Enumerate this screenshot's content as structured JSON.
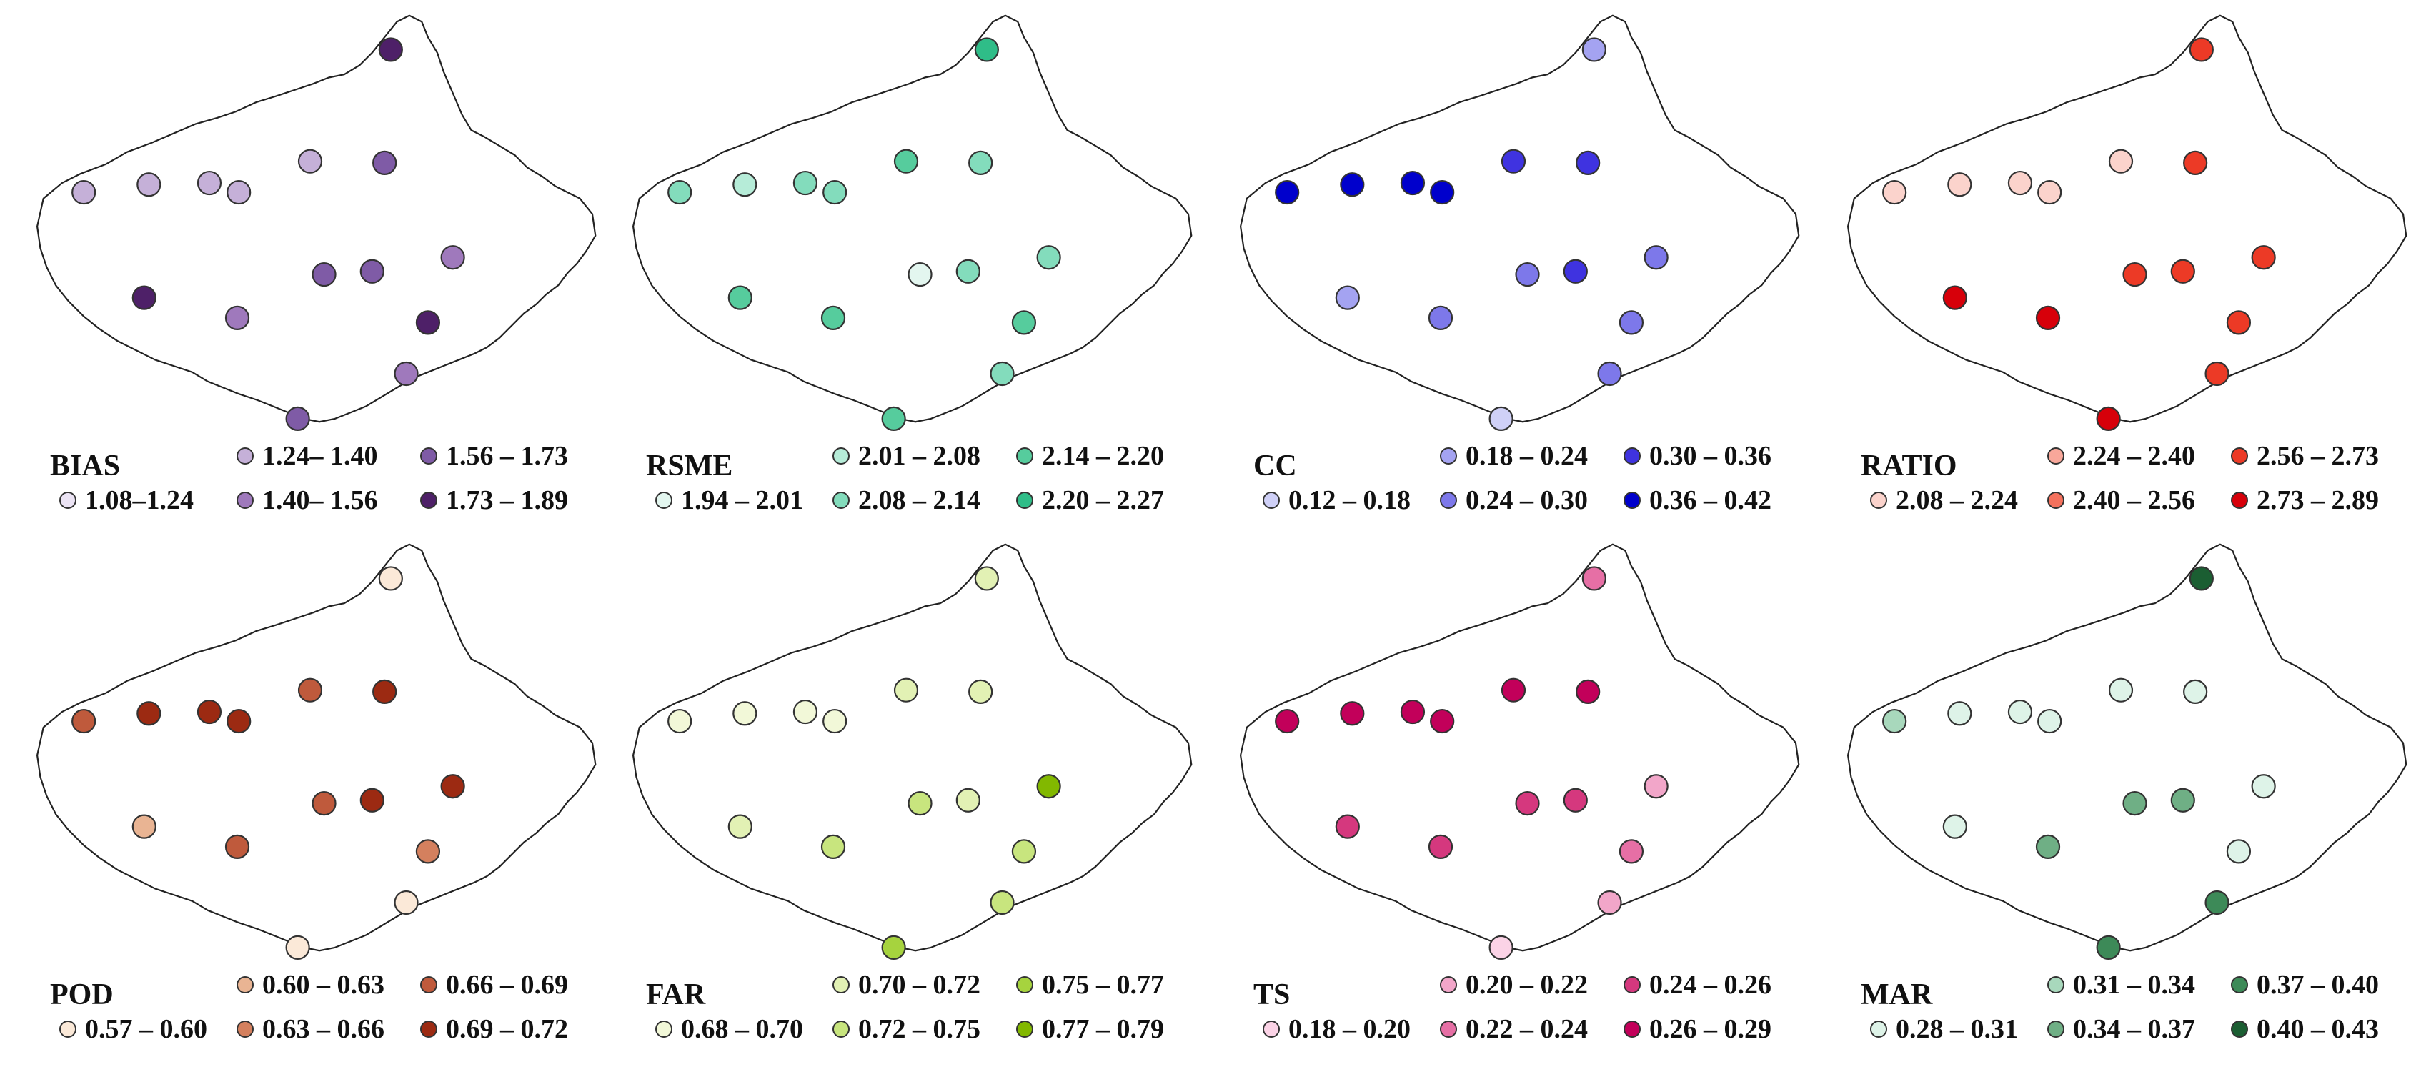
{
  "panels": [
    {
      "label": "BIAS",
      "colors": [
        "#ece4f5",
        "#c5b0d8",
        "#9f79bc",
        "#7f5ba6",
        "#4e2068"
      ],
      "legend_bins": [
        "1.08–1.24",
        "1.24– 1.40",
        "1.40– 1.56",
        "1.56 – 1.73",
        "1.73 – 1.89"
      ],
      "station_class": [
        4,
        1,
        1,
        1,
        1,
        1,
        3,
        2,
        4,
        2,
        3,
        3,
        4,
        2,
        3,
        4
      ]
    },
    {
      "label": "RSME",
      "colors": [
        "#e3f6ef",
        "#b6ecd8",
        "#83dcbc",
        "#56cc9d",
        "#2fbd88"
      ],
      "legend_bins": [
        "1.94 – 2.01",
        "2.01 – 2.08",
        "2.08 – 2.14",
        "2.14 – 2.20",
        "2.20 – 2.27"
      ],
      "station_class": [
        4,
        2,
        1,
        2,
        2,
        3,
        2,
        2,
        3,
        3,
        0,
        2,
        3,
        2,
        3,
        4
      ]
    },
    {
      "label": "CC",
      "colors": [
        "#cfd0f7",
        "#a4a3f1",
        "#7d78ea",
        "#3f33e0",
        "#0000cc"
      ],
      "legend_bins": [
        "0.12 – 0.18",
        "0.18 – 0.24",
        "0.24 – 0.30",
        "0.30 – 0.36",
        "0.36 – 0.42"
      ],
      "station_class": [
        1,
        4,
        4,
        4,
        4,
        3,
        3,
        2,
        1,
        2,
        2,
        3,
        2,
        2,
        0,
        0
      ]
    },
    {
      "label": "RATIO",
      "colors": [
        "#fbd3cc",
        "#f8a79a",
        "#f4715d",
        "#ec3a26",
        "#d7000a"
      ],
      "legend_bins": [
        "2.08 – 2.24",
        "2.24 – 2.40",
        "2.40 – 2.56",
        "2.56 – 2.73",
        "2.73 – 2.89"
      ],
      "station_class": [
        3,
        0,
        0,
        0,
        0,
        0,
        3,
        3,
        4,
        4,
        3,
        3,
        3,
        3,
        4,
        4
      ]
    },
    {
      "label": "POD",
      "colors": [
        "#fbe9d8",
        "#e9b493",
        "#d4805e",
        "#bf5a3c",
        "#9c2a12"
      ],
      "legend_bins": [
        "0.57 – 0.60",
        "0.60 – 0.63",
        "0.63 – 0.66",
        "0.66 – 0.69",
        "0.69 – 0.72"
      ],
      "station_class": [
        0,
        3,
        4,
        4,
        4,
        3,
        4,
        4,
        1,
        3,
        3,
        4,
        2,
        0,
        0,
        3
      ]
    },
    {
      "label": "FAR",
      "colors": [
        "#f2f8d8",
        "#e2f1b4",
        "#c8e57e",
        "#a6d33e",
        "#82b800"
      ],
      "legend_bins": [
        "0.68 – 0.70",
        "0.70 – 0.72",
        "0.72 – 0.75",
        "0.75 – 0.77",
        "0.77 – 0.79"
      ],
      "station_class": [
        1,
        0,
        0,
        0,
        0,
        1,
        1,
        4,
        1,
        2,
        2,
        1,
        2,
        2,
        3,
        4
      ]
    },
    {
      "label": "TS",
      "colors": [
        "#fbd3e6",
        "#f2a6c9",
        "#e66fa5",
        "#d5387e",
        "#c2005a"
      ],
      "legend_bins": [
        "0.18 – 0.20",
        "0.20 – 0.22",
        "0.22 – 0.24",
        "0.24 – 0.26",
        "0.26 – 0.29"
      ],
      "station_class": [
        2,
        4,
        4,
        4,
        4,
        4,
        4,
        1,
        3,
        3,
        3,
        3,
        2,
        1,
        0,
        0
      ]
    },
    {
      "label": "MAR",
      "colors": [
        "#def3e8",
        "#a8d8bc",
        "#6faf85",
        "#3d8a58",
        "#1b5e32"
      ],
      "legend_bins": [
        "0.28 – 0.31",
        "0.31 – 0.34",
        "0.34 – 0.37",
        "0.37 – 0.40",
        "0.40 – 0.43"
      ],
      "station_class": [
        4,
        1,
        0,
        0,
        0,
        0,
        0,
        0,
        0,
        2,
        2,
        2,
        0,
        3,
        3,
        4
      ]
    }
  ]
}
